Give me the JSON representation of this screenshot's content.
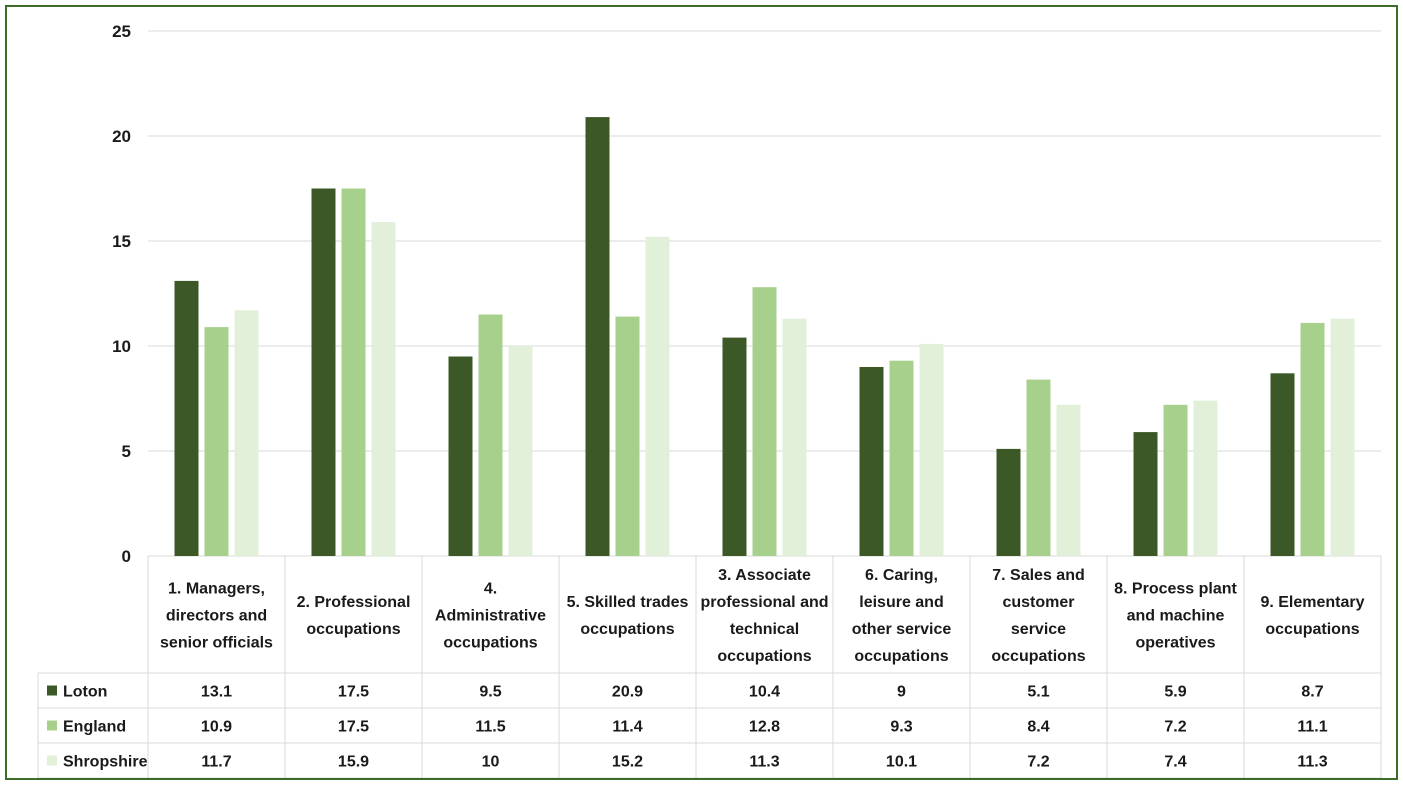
{
  "chart_data": {
    "type": "bar",
    "title": "",
    "xlabel": "",
    "ylabel": "",
    "ylim": [
      0,
      25
    ],
    "yticks": [
      0,
      5,
      10,
      15,
      20,
      25
    ],
    "grid": true,
    "legend": "data-table",
    "categories": [
      [
        "1. Managers,",
        "directors and",
        "senior officials"
      ],
      [
        "2. Professional",
        "occupations"
      ],
      [
        "4.",
        "Administrative",
        "occupations"
      ],
      [
        "5. Skilled trades",
        "occupations"
      ],
      [
        "3. Associate",
        "professional and",
        "technical",
        "occupations"
      ],
      [
        "6. Caring,",
        "leisure and",
        "other service",
        "occupations"
      ],
      [
        "7. Sales and",
        "customer",
        "service",
        "occupations"
      ],
      [
        "8. Process plant",
        "and machine",
        "operatives"
      ],
      [
        "9. Elementary",
        "occupations"
      ]
    ],
    "series": [
      {
        "name": "Loton",
        "color": "#3b5826",
        "values": [
          13.1,
          17.5,
          9.5,
          20.9,
          10.4,
          9,
          5.1,
          5.9,
          8.7
        ]
      },
      {
        "name": "England",
        "color": "#a8d08d",
        "values": [
          10.9,
          17.5,
          11.5,
          11.4,
          12.8,
          9.3,
          8.4,
          7.2,
          11.1
        ]
      },
      {
        "name": "Shropshire",
        "color": "#e2efd9",
        "values": [
          11.7,
          15.9,
          10,
          15.2,
          11.3,
          10.1,
          7.2,
          7.4,
          11.3
        ]
      }
    ]
  }
}
